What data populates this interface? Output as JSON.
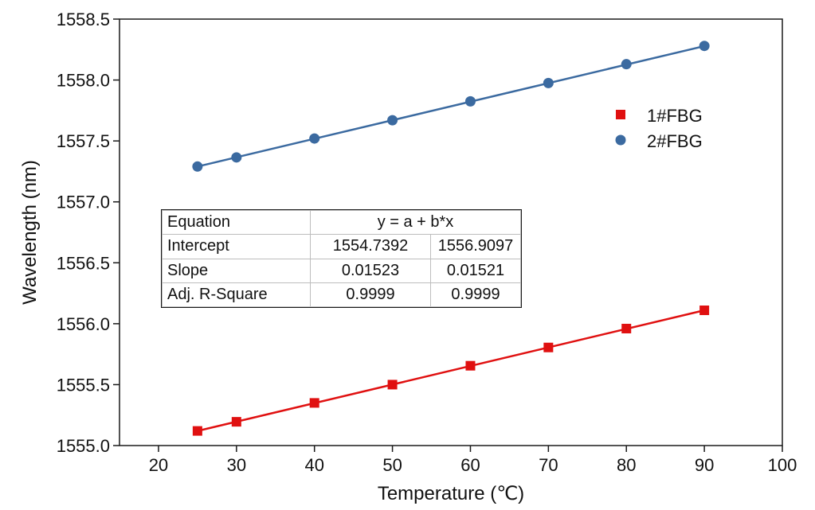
{
  "chart_data": {
    "type": "scatter",
    "xlabel": "Temperature (℃)",
    "ylabel": "Wavelength (nm)",
    "xlim": [
      15,
      100
    ],
    "ylim": [
      1555.0,
      1558.5
    ],
    "x_ticks": [
      20,
      30,
      40,
      50,
      60,
      70,
      80,
      90,
      100
    ],
    "y_ticks": [
      "1555.0",
      "1555.5",
      "1556.0",
      "1556.5",
      "1557.0",
      "1557.5",
      "1558.0",
      "1558.5"
    ],
    "legend_position": "right",
    "series": [
      {
        "name": "1#FBG",
        "marker": "square",
        "color": "#e01010",
        "x": [
          25,
          30,
          40,
          50,
          60,
          70,
          80,
          90
        ],
        "y": [
          1555.12,
          1555.195,
          1555.35,
          1555.5,
          1555.655,
          1555.805,
          1555.96,
          1556.11
        ],
        "fit": {
          "intercept": 1554.7392,
          "slope": 0.01523
        }
      },
      {
        "name": "2#FBG",
        "marker": "circle",
        "color": "#3b6aa0",
        "x": [
          25,
          30,
          40,
          50,
          60,
          70,
          80,
          90
        ],
        "y": [
          1557.29,
          1557.365,
          1557.52,
          1557.67,
          1557.825,
          1557.975,
          1558.13,
          1558.28
        ],
        "fit": {
          "intercept": 1556.9097,
          "slope": 0.01521
        }
      }
    ],
    "fit_table": {
      "equation_label": "Equation",
      "equation": "y = a + b*x",
      "intercept_label": "Intercept",
      "intercept_1": "1554.7392",
      "intercept_2": "1556.9097",
      "slope_label": "Slope",
      "slope_1": "0.01523",
      "slope_2": "0.01521",
      "r2_label": "Adj. R-Square",
      "r2_1": "0.9999",
      "r2_2": "0.9999"
    }
  }
}
